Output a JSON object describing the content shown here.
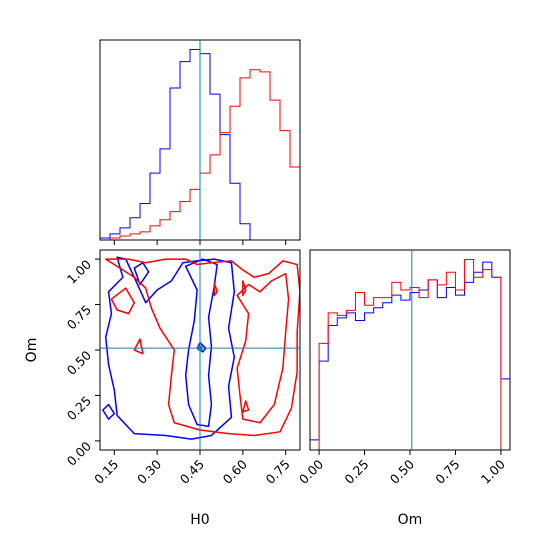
{
  "chart_data": {
    "type": "corner",
    "parameters": [
      "H0",
      "Om"
    ],
    "truths": {
      "H0": 0.45,
      "Om": 0.51
    },
    "truth_color": "#1f77b4",
    "xlabel_h0": "H0",
    "xlabel_om": "Om",
    "ylabel_om": "Om",
    "h0_ticks": [
      "0.15",
      "0.30",
      "0.45",
      "0.60",
      "0.75"
    ],
    "om_ticks": [
      "0.00",
      "0.25",
      "0.50",
      "0.75",
      "1.00"
    ],
    "h0_range": [
      0.1,
      0.8
    ],
    "om_range": [
      -0.05,
      1.05
    ],
    "series": [
      {
        "color": "#0000ff",
        "h0_hist": {
          "edges": [
            0.1,
            0.135,
            0.17,
            0.205,
            0.24,
            0.275,
            0.31,
            0.345,
            0.38,
            0.415,
            0.45,
            0.485,
            0.52,
            0.555,
            0.59,
            0.625
          ],
          "counts": [
            1,
            3,
            6,
            11,
            18,
            33,
            45,
            75,
            88,
            94,
            92,
            72,
            52,
            28,
            8
          ]
        },
        "om_hist": {
          "edges": [
            -0.05,
            0.0,
            0.05,
            0.1,
            0.15,
            0.2,
            0.25,
            0.3,
            0.35,
            0.4,
            0.45,
            0.5,
            0.55,
            0.6,
            0.65,
            0.7,
            0.75,
            0.8,
            0.85,
            0.9,
            0.95,
            1.0,
            1.05
          ],
          "counts": [
            4,
            35,
            49,
            52,
            54,
            51,
            54,
            56,
            58,
            61,
            59,
            62,
            63,
            67,
            60,
            64,
            61,
            66,
            70,
            74,
            68,
            28
          ]
        },
        "contours": [
          [
            [
              0.16,
              1.01
            ],
            [
              0.18,
              0.9
            ],
            [
              0.13,
              0.82
            ],
            [
              0.14,
              0.7
            ],
            [
              0.12,
              0.57
            ],
            [
              0.13,
              0.42
            ],
            [
              0.15,
              0.28
            ],
            [
              0.16,
              0.14
            ],
            [
              0.22,
              0.04
            ],
            [
              0.33,
              0.03
            ],
            [
              0.42,
              0.01
            ],
            [
              0.49,
              0.03
            ],
            [
              0.56,
              0.13
            ],
            [
              0.55,
              0.3
            ],
            [
              0.57,
              0.46
            ],
            [
              0.55,
              0.62
            ],
            [
              0.57,
              0.82
            ],
            [
              0.56,
              0.98
            ],
            [
              0.5,
              1.0
            ],
            [
              0.44,
              0.99
            ],
            [
              0.39,
              0.98
            ],
            [
              0.35,
              0.88
            ],
            [
              0.3,
              0.83
            ],
            [
              0.26,
              0.76
            ],
            [
              0.22,
              0.9
            ],
            [
              0.19,
              1.0
            ]
          ],
          [
            [
              0.4,
              0.96
            ],
            [
              0.44,
              0.83
            ],
            [
              0.43,
              0.66
            ],
            [
              0.41,
              0.5
            ],
            [
              0.4,
              0.36
            ],
            [
              0.41,
              0.2
            ],
            [
              0.44,
              0.09
            ],
            [
              0.48,
              0.08
            ],
            [
              0.49,
              0.2
            ],
            [
              0.48,
              0.36
            ],
            [
              0.49,
              0.52
            ],
            [
              0.48,
              0.68
            ],
            [
              0.5,
              0.85
            ],
            [
              0.51,
              0.97
            ],
            [
              0.46,
              1.0
            ]
          ],
          [
            [
              0.25,
              0.98
            ],
            [
              0.27,
              0.93
            ],
            [
              0.24,
              0.86
            ],
            [
              0.22,
              0.95
            ]
          ],
          [
            [
              0.11,
              0.17
            ],
            [
              0.13,
              0.2
            ],
            [
              0.15,
              0.15
            ],
            [
              0.13,
              0.12
            ]
          ],
          [
            [
              0.45,
              0.54
            ],
            [
              0.47,
              0.51
            ],
            [
              0.46,
              0.49
            ],
            [
              0.44,
              0.51
            ]
          ]
        ]
      },
      {
        "color": "#ff0000",
        "h0_hist": {
          "edges": [
            0.1,
            0.135,
            0.17,
            0.205,
            0.24,
            0.275,
            0.31,
            0.345,
            0.38,
            0.415,
            0.45,
            0.485,
            0.52,
            0.555,
            0.59,
            0.625,
            0.66,
            0.695,
            0.73,
            0.765,
            0.8
          ],
          "counts": [
            0,
            1,
            2,
            3,
            4,
            7,
            10,
            14,
            19,
            25,
            33,
            42,
            53,
            66,
            80,
            84,
            83,
            69,
            54,
            36,
            10
          ]
        },
        "om_hist": {
          "edges": [
            0.0,
            0.05,
            0.1,
            0.15,
            0.2,
            0.25,
            0.3,
            0.35,
            0.4,
            0.45,
            0.5,
            0.55,
            0.6,
            0.65,
            0.7,
            0.75,
            0.8,
            0.85,
            0.9,
            0.95,
            1.0
          ],
          "counts": [
            42,
            54,
            53,
            55,
            62,
            57,
            60,
            60,
            66,
            63,
            64,
            60,
            67,
            65,
            70,
            63,
            75,
            68,
            71,
            68
          ]
        },
        "contours": [
          [
            [
              0.12,
              1.0
            ],
            [
              0.16,
              0.96
            ],
            [
              0.22,
              0.9
            ],
            [
              0.26,
              0.84
            ],
            [
              0.28,
              0.73
            ],
            [
              0.31,
              0.62
            ],
            [
              0.36,
              0.5
            ],
            [
              0.35,
              0.36
            ],
            [
              0.34,
              0.2
            ],
            [
              0.36,
              0.1
            ],
            [
              0.45,
              0.06
            ],
            [
              0.55,
              0.04
            ],
            [
              0.64,
              0.03
            ],
            [
              0.73,
              0.05
            ],
            [
              0.77,
              0.18
            ],
            [
              0.79,
              0.38
            ],
            [
              0.79,
              0.6
            ],
            [
              0.8,
              0.82
            ],
            [
              0.79,
              0.97
            ],
            [
              0.74,
              0.99
            ],
            [
              0.69,
              0.92
            ],
            [
              0.64,
              0.9
            ],
            [
              0.6,
              0.94
            ],
            [
              0.56,
              0.99
            ],
            [
              0.49,
              0.98
            ],
            [
              0.44,
              0.97
            ],
            [
              0.4,
              1.0
            ],
            [
              0.33,
              1.0
            ],
            [
              0.26,
              0.98
            ],
            [
              0.2,
              1.0
            ]
          ],
          [
            [
              0.58,
              0.8
            ],
            [
              0.62,
              0.7
            ],
            [
              0.61,
              0.55
            ],
            [
              0.58,
              0.4
            ],
            [
              0.59,
              0.25
            ],
            [
              0.6,
              0.12
            ],
            [
              0.66,
              0.1
            ],
            [
              0.71,
              0.2
            ],
            [
              0.74,
              0.4
            ],
            [
              0.75,
              0.6
            ],
            [
              0.76,
              0.78
            ],
            [
              0.75,
              0.92
            ],
            [
              0.7,
              0.88
            ],
            [
              0.66,
              0.82
            ],
            [
              0.62,
              0.86
            ]
          ],
          [
            [
              0.14,
              0.78
            ],
            [
              0.19,
              0.84
            ],
            [
              0.22,
              0.76
            ],
            [
              0.2,
              0.7
            ],
            [
              0.16,
              0.72
            ]
          ],
          [
            [
              0.6,
              0.16
            ],
            [
              0.61,
              0.22
            ],
            [
              0.62,
              0.17
            ]
          ],
          [
            [
              0.6,
              0.88
            ],
            [
              0.61,
              0.83
            ],
            [
              0.6,
              0.8
            ]
          ],
          [
            [
              0.5,
              0.87
            ],
            [
              0.51,
              0.82
            ],
            [
              0.5,
              0.8
            ]
          ],
          [
            [
              0.22,
              0.5
            ],
            [
              0.24,
              0.56
            ],
            [
              0.25,
              0.48
            ]
          ]
        ]
      }
    ]
  }
}
